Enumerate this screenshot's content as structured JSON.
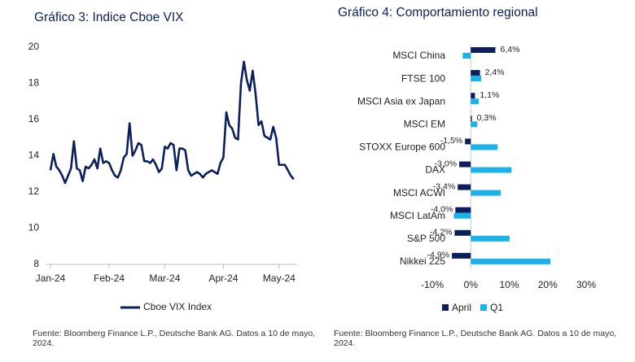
{
  "chart_data": [
    {
      "type": "line",
      "title": "Gráfico 3: Indice Cboe VIX",
      "categories": [
        "Jan-24",
        null,
        null,
        null,
        null,
        null,
        null,
        null,
        null,
        null,
        null,
        null,
        null,
        null,
        null,
        null,
        null,
        null,
        null,
        null,
        "Feb-24",
        null,
        null,
        null,
        null,
        null,
        null,
        null,
        null,
        null,
        null,
        null,
        null,
        null,
        null,
        null,
        null,
        null,
        null,
        "Mar-24",
        null,
        null,
        null,
        null,
        null,
        null,
        null,
        null,
        null,
        null,
        null,
        null,
        null,
        null,
        null,
        null,
        null,
        null,
        null,
        "Apr-24",
        null,
        null,
        null,
        null,
        null,
        null,
        null,
        null,
        null,
        null,
        null,
        null,
        null,
        null,
        null,
        null,
        null,
        null,
        "May-24",
        null,
        null,
        null,
        null,
        null
      ],
      "series": [
        {
          "name": "Cboe VIX Index",
          "color": "#0a1f5c",
          "values": [
            13.2,
            14.1,
            13.4,
            13.2,
            12.9,
            12.5,
            12.9,
            13.3,
            14.8,
            13.3,
            13.2,
            12.6,
            13.4,
            13.3,
            13.5,
            13.8,
            13.3,
            14.4,
            13.6,
            13.7,
            13.6,
            13.2,
            12.9,
            12.8,
            13.2,
            13.9,
            14.1,
            15.8,
            14.0,
            14.3,
            14.7,
            14.6,
            13.7,
            13.7,
            13.6,
            13.8,
            13.5,
            13.1,
            13.3,
            14.5,
            14.4,
            14.7,
            14.6,
            13.2,
            14.4,
            14.4,
            14.3,
            13.2,
            12.9,
            13.0,
            13.1,
            13.0,
            12.8,
            13.0,
            13.1,
            13.2,
            13.1,
            13.0,
            13.6,
            13.9,
            16.4,
            15.7,
            15.5,
            15.0,
            14.9,
            18.0,
            19.2,
            18.2,
            17.6,
            18.7,
            17.4,
            15.7,
            15.9,
            15.1,
            15.0,
            14.9,
            15.6,
            15.0,
            13.5,
            13.5,
            13.5,
            13.2,
            12.9,
            12.7
          ]
        }
      ],
      "ylim": [
        8,
        20
      ],
      "yticks": [
        8,
        10,
        12,
        14,
        16,
        18,
        20
      ],
      "source": "Fuente: Bloomberg Finance L.P., Deutsche Bank AG. Datos a 10 de mayo, 2024."
    },
    {
      "type": "hbar",
      "title": "Gráfico 4: Comportamiento regional",
      "categories": [
        "MSCI China",
        "FTSE 100",
        "MSCI Asia ex Japan",
        "MSCI EM",
        "STOXX Europe 600",
        "DAX",
        "MSCI ACWI",
        "MSCI LatAm",
        "S&P 500",
        "Nikkei 225"
      ],
      "series": [
        {
          "name": "April",
          "color": "#0a1f5c",
          "values": [
            6.4,
            2.4,
            1.1,
            0.3,
            -1.5,
            -3.0,
            -3.4,
            -4.0,
            -4.2,
            -4.9
          ],
          "value_labels": [
            "6,4%",
            "2,4%",
            "1,1%",
            "0,3%",
            "-1,5%",
            "-3,0%",
            "-3,4%",
            "-4,0%",
            "-4,2%",
            "-4,9%"
          ]
        },
        {
          "name": "Q1",
          "color": "#1ab2e8",
          "values": [
            -2.1,
            2.7,
            2.1,
            1.7,
            7.0,
            10.6,
            7.8,
            -4.4,
            10.1,
            20.7
          ]
        }
      ],
      "xlim": [
        -10,
        30
      ],
      "xticks": [
        {
          "value": -10,
          "label": "-10%"
        },
        {
          "value": 0,
          "label": "0%"
        },
        {
          "value": 10,
          "label": "10%"
        },
        {
          "value": 20,
          "label": "20%"
        },
        {
          "value": 30,
          "label": "30%"
        }
      ],
      "source": "Fuente: Bloomberg Finance L.P., Deutsche Bank AG. Datos a 10 de mayo, 2024."
    }
  ]
}
